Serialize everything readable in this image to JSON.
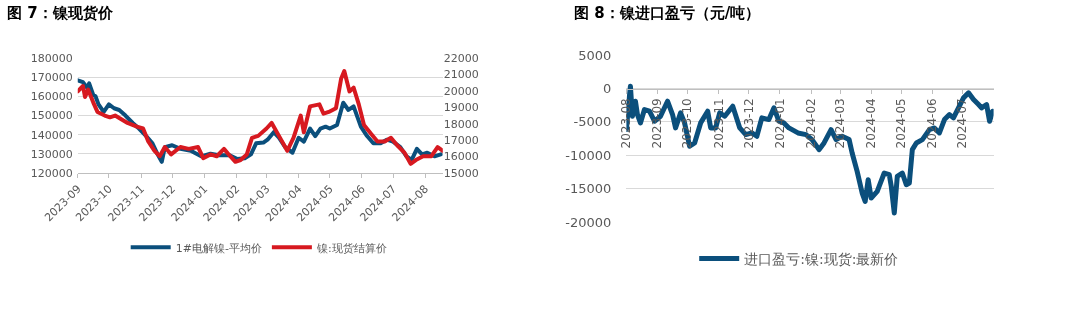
{
  "chart_data": [
    {
      "type": "line",
      "title": "图 7：镍现货价",
      "xlim": [
        "2023-09-01",
        "2024-08-18"
      ],
      "xticks": [
        "2023-09",
        "2023-10",
        "2023-11",
        "2023-12",
        "2024-01",
        "2024-02",
        "2024-03",
        "2024-04",
        "2024-05",
        "2024-06",
        "2024-07",
        "2024-08"
      ],
      "ylim": [
        120000,
        180000
      ],
      "yticks": [
        120000,
        130000,
        140000,
        150000,
        160000,
        170000,
        180000
      ],
      "y2lim": [
        15000,
        22000
      ],
      "y2ticks": [
        15000,
        16000,
        17000,
        18000,
        19000,
        20000,
        21000,
        22000
      ],
      "grid": "y",
      "legend": "bottom",
      "series": [
        {
          "name": "1#电解镍-平均价",
          "color": "#0b4f7c",
          "x": [
            "2023-09-01",
            "2023-09-06",
            "2023-09-10",
            "2023-09-12",
            "2023-09-16",
            "2023-09-18",
            "2023-09-21",
            "2023-09-26",
            "2023-10-01",
            "2023-10-06",
            "2023-10-11",
            "2023-10-17",
            "2023-10-24",
            "2023-10-30",
            "2023-11-06",
            "2023-11-12",
            "2023-11-17",
            "2023-11-21",
            "2023-11-24",
            "2023-12-01",
            "2023-12-09",
            "2023-12-19",
            "2023-12-29",
            "2024-01-07",
            "2024-01-15",
            "2024-01-25",
            "2024-02-02",
            "2024-02-09",
            "2024-02-15",
            "2024-02-20",
            "2024-02-27",
            "2024-03-02",
            "2024-03-08",
            "2024-03-13",
            "2024-03-19",
            "2024-03-26",
            "2024-04-01",
            "2024-04-06",
            "2024-04-12",
            "2024-04-17",
            "2024-04-22",
            "2024-04-27",
            "2024-05-01",
            "2024-05-08",
            "2024-05-14",
            "2024-05-19",
            "2024-05-24",
            "2024-05-31",
            "2024-06-06",
            "2024-06-12",
            "2024-06-19",
            "2024-06-25",
            "2024-07-01",
            "2024-07-08",
            "2024-07-14",
            "2024-07-19",
            "2024-07-24",
            "2024-07-29",
            "2024-08-03",
            "2024-08-10",
            "2024-08-16"
          ],
          "values": [
            168400,
            167400,
            164500,
            166800,
            160600,
            160200,
            155800,
            151900,
            155800,
            153800,
            152900,
            150000,
            146100,
            143200,
            139300,
            135500,
            129700,
            125800,
            133500,
            134500,
            132600,
            131600,
            128700,
            130100,
            129300,
            129300,
            127300,
            127700,
            129700,
            135500,
            135900,
            137400,
            141300,
            138400,
            133500,
            130600,
            138400,
            136400,
            143200,
            139300,
            143200,
            144200,
            143200,
            145100,
            156700,
            152900,
            154800,
            144200,
            139300,
            135500,
            135500,
            137400,
            136400,
            133500,
            128700,
            126800,
            132600,
            129700,
            130600,
            128700,
            129700
          ]
        },
        {
          "name": "镍:现货结算价",
          "color": "#d71920",
          "axis": "y2",
          "x": [
            "2023-09-01",
            "2023-09-06",
            "2023-09-08",
            "2023-09-11",
            "2023-09-16",
            "2023-09-20",
            "2023-09-27",
            "2023-10-02",
            "2023-10-07",
            "2023-10-13",
            "2023-10-19",
            "2023-10-28",
            "2023-11-03",
            "2023-11-08",
            "2023-11-14",
            "2023-11-19",
            "2023-11-24",
            "2023-11-30",
            "2023-12-09",
            "2023-12-17",
            "2023-12-26",
            "2023-12-31",
            "2024-01-07",
            "2024-01-13",
            "2024-01-20",
            "2024-01-26",
            "2024-01-31",
            "2024-02-05",
            "2024-02-11",
            "2024-02-16",
            "2024-02-22",
            "2024-03-01",
            "2024-03-06",
            "2024-03-13",
            "2024-03-21",
            "2024-03-27",
            "2024-04-03",
            "2024-04-06",
            "2024-04-12",
            "2024-04-21",
            "2024-04-25",
            "2024-04-30",
            "2024-05-07",
            "2024-05-12",
            "2024-05-15",
            "2024-05-20",
            "2024-05-24",
            "2024-05-29",
            "2024-06-03",
            "2024-06-10",
            "2024-06-16",
            "2024-06-23",
            "2024-06-29",
            "2024-07-05",
            "2024-07-12",
            "2024-07-18",
            "2024-07-23",
            "2024-07-30",
            "2024-08-07",
            "2024-08-13",
            "2024-08-18"
          ],
          "values": [
            19970,
            20300,
            19630,
            20080,
            19290,
            18720,
            18500,
            18390,
            18500,
            18270,
            18050,
            17820,
            17710,
            16920,
            16350,
            16020,
            16580,
            16130,
            16580,
            16470,
            16580,
            15900,
            16130,
            16020,
            16470,
            16020,
            15680,
            15790,
            16130,
            17140,
            17260,
            17710,
            18050,
            17260,
            16350,
            17140,
            18500,
            17480,
            19060,
            19180,
            18610,
            18720,
            18950,
            20760,
            21210,
            19970,
            20200,
            19180,
            17930,
            17370,
            16920,
            16920,
            17140,
            16690,
            16240,
            15560,
            15790,
            16020,
            16020,
            16580,
            16350
          ]
        }
      ]
    },
    {
      "type": "line",
      "title": "图 8：镍进口盈亏（元/吨）",
      "xlim": [
        "2023-08-01",
        "2024-08-01"
      ],
      "xticks": [
        "2023-08",
        "2023-09",
        "2023-10",
        "2023-11",
        "2023-12",
        "2024-01",
        "2024-02",
        "2024-03",
        "2024-04",
        "2024-05",
        "2024-06",
        "2024-07"
      ],
      "ylim": [
        -20000,
        5000
      ],
      "yticks": [
        -20000,
        -15000,
        -10000,
        -5000,
        0,
        5000
      ],
      "grid": "y",
      "legend": "bottom",
      "series": [
        {
          "name": "进口盈亏:镍:现货:最新价",
          "color": "#0b4f7c",
          "x": [
            "2023-08-01",
            "2023-08-03",
            "2023-08-05",
            "2023-08-07",
            "2023-08-10",
            "2023-08-12",
            "2023-08-15",
            "2023-08-19",
            "2023-08-24",
            "2023-08-29",
            "2023-09-04",
            "2023-09-11",
            "2023-09-16",
            "2023-09-19",
            "2023-09-24",
            "2023-09-28",
            "2023-10-03",
            "2023-10-08",
            "2023-10-14",
            "2023-10-21",
            "2023-10-24",
            "2023-10-29",
            "2023-11-02",
            "2023-11-07",
            "2023-11-15",
            "2023-11-22",
            "2023-11-28",
            "2023-12-04",
            "2023-12-09",
            "2023-12-14",
            "2023-12-21",
            "2023-12-26",
            "2023-12-31",
            "2024-01-05",
            "2024-01-10",
            "2024-01-19",
            "2024-01-27",
            "2024-02-02",
            "2024-02-09",
            "2024-02-14",
            "2024-02-21",
            "2024-02-26",
            "2024-03-03",
            "2024-03-10",
            "2024-03-13",
            "2024-03-18",
            "2024-03-23",
            "2024-03-26",
            "2024-03-29",
            "2024-04-01",
            "2024-04-07",
            "2024-04-14",
            "2024-04-19",
            "2024-04-21",
            "2024-04-24",
            "2024-04-27",
            "2024-05-02",
            "2024-05-06",
            "2024-05-09",
            "2024-05-12",
            "2024-05-16",
            "2024-05-22",
            "2024-05-29",
            "2024-06-03",
            "2024-06-08",
            "2024-06-13",
            "2024-06-18",
            "2024-06-22",
            "2024-06-27",
            "2024-07-02",
            "2024-07-07",
            "2024-07-12",
            "2024-07-17",
            "2024-07-20",
            "2024-07-25",
            "2024-07-28",
            "2024-07-31"
          ],
          "values": [
            -6150,
            -2650,
            350,
            -4150,
            -1900,
            -3900,
            -5150,
            -3150,
            -3400,
            -4900,
            -4150,
            -1900,
            -3900,
            -5900,
            -3650,
            -5150,
            -8650,
            -8150,
            -5150,
            -3400,
            -5900,
            -5900,
            -3650,
            -4150,
            -2650,
            -5900,
            -6900,
            -6650,
            -7150,
            -4400,
            -4650,
            -2900,
            -4900,
            -5150,
            -5900,
            -6650,
            -6900,
            -7650,
            -9150,
            -8150,
            -6150,
            -7650,
            -7150,
            -7650,
            -9650,
            -12400,
            -15650,
            -16900,
            -13650,
            -16400,
            -15400,
            -12650,
            -12900,
            -14650,
            -18650,
            -13150,
            -12650,
            -14400,
            -14150,
            -9150,
            -8150,
            -7650,
            -6150,
            -5900,
            -6650,
            -4650,
            -3900,
            -4400,
            -2900,
            -1400,
            -650,
            -1650,
            -2400,
            -2900,
            -2400,
            -4900,
            -3400
          ]
        }
      ]
    }
  ]
}
